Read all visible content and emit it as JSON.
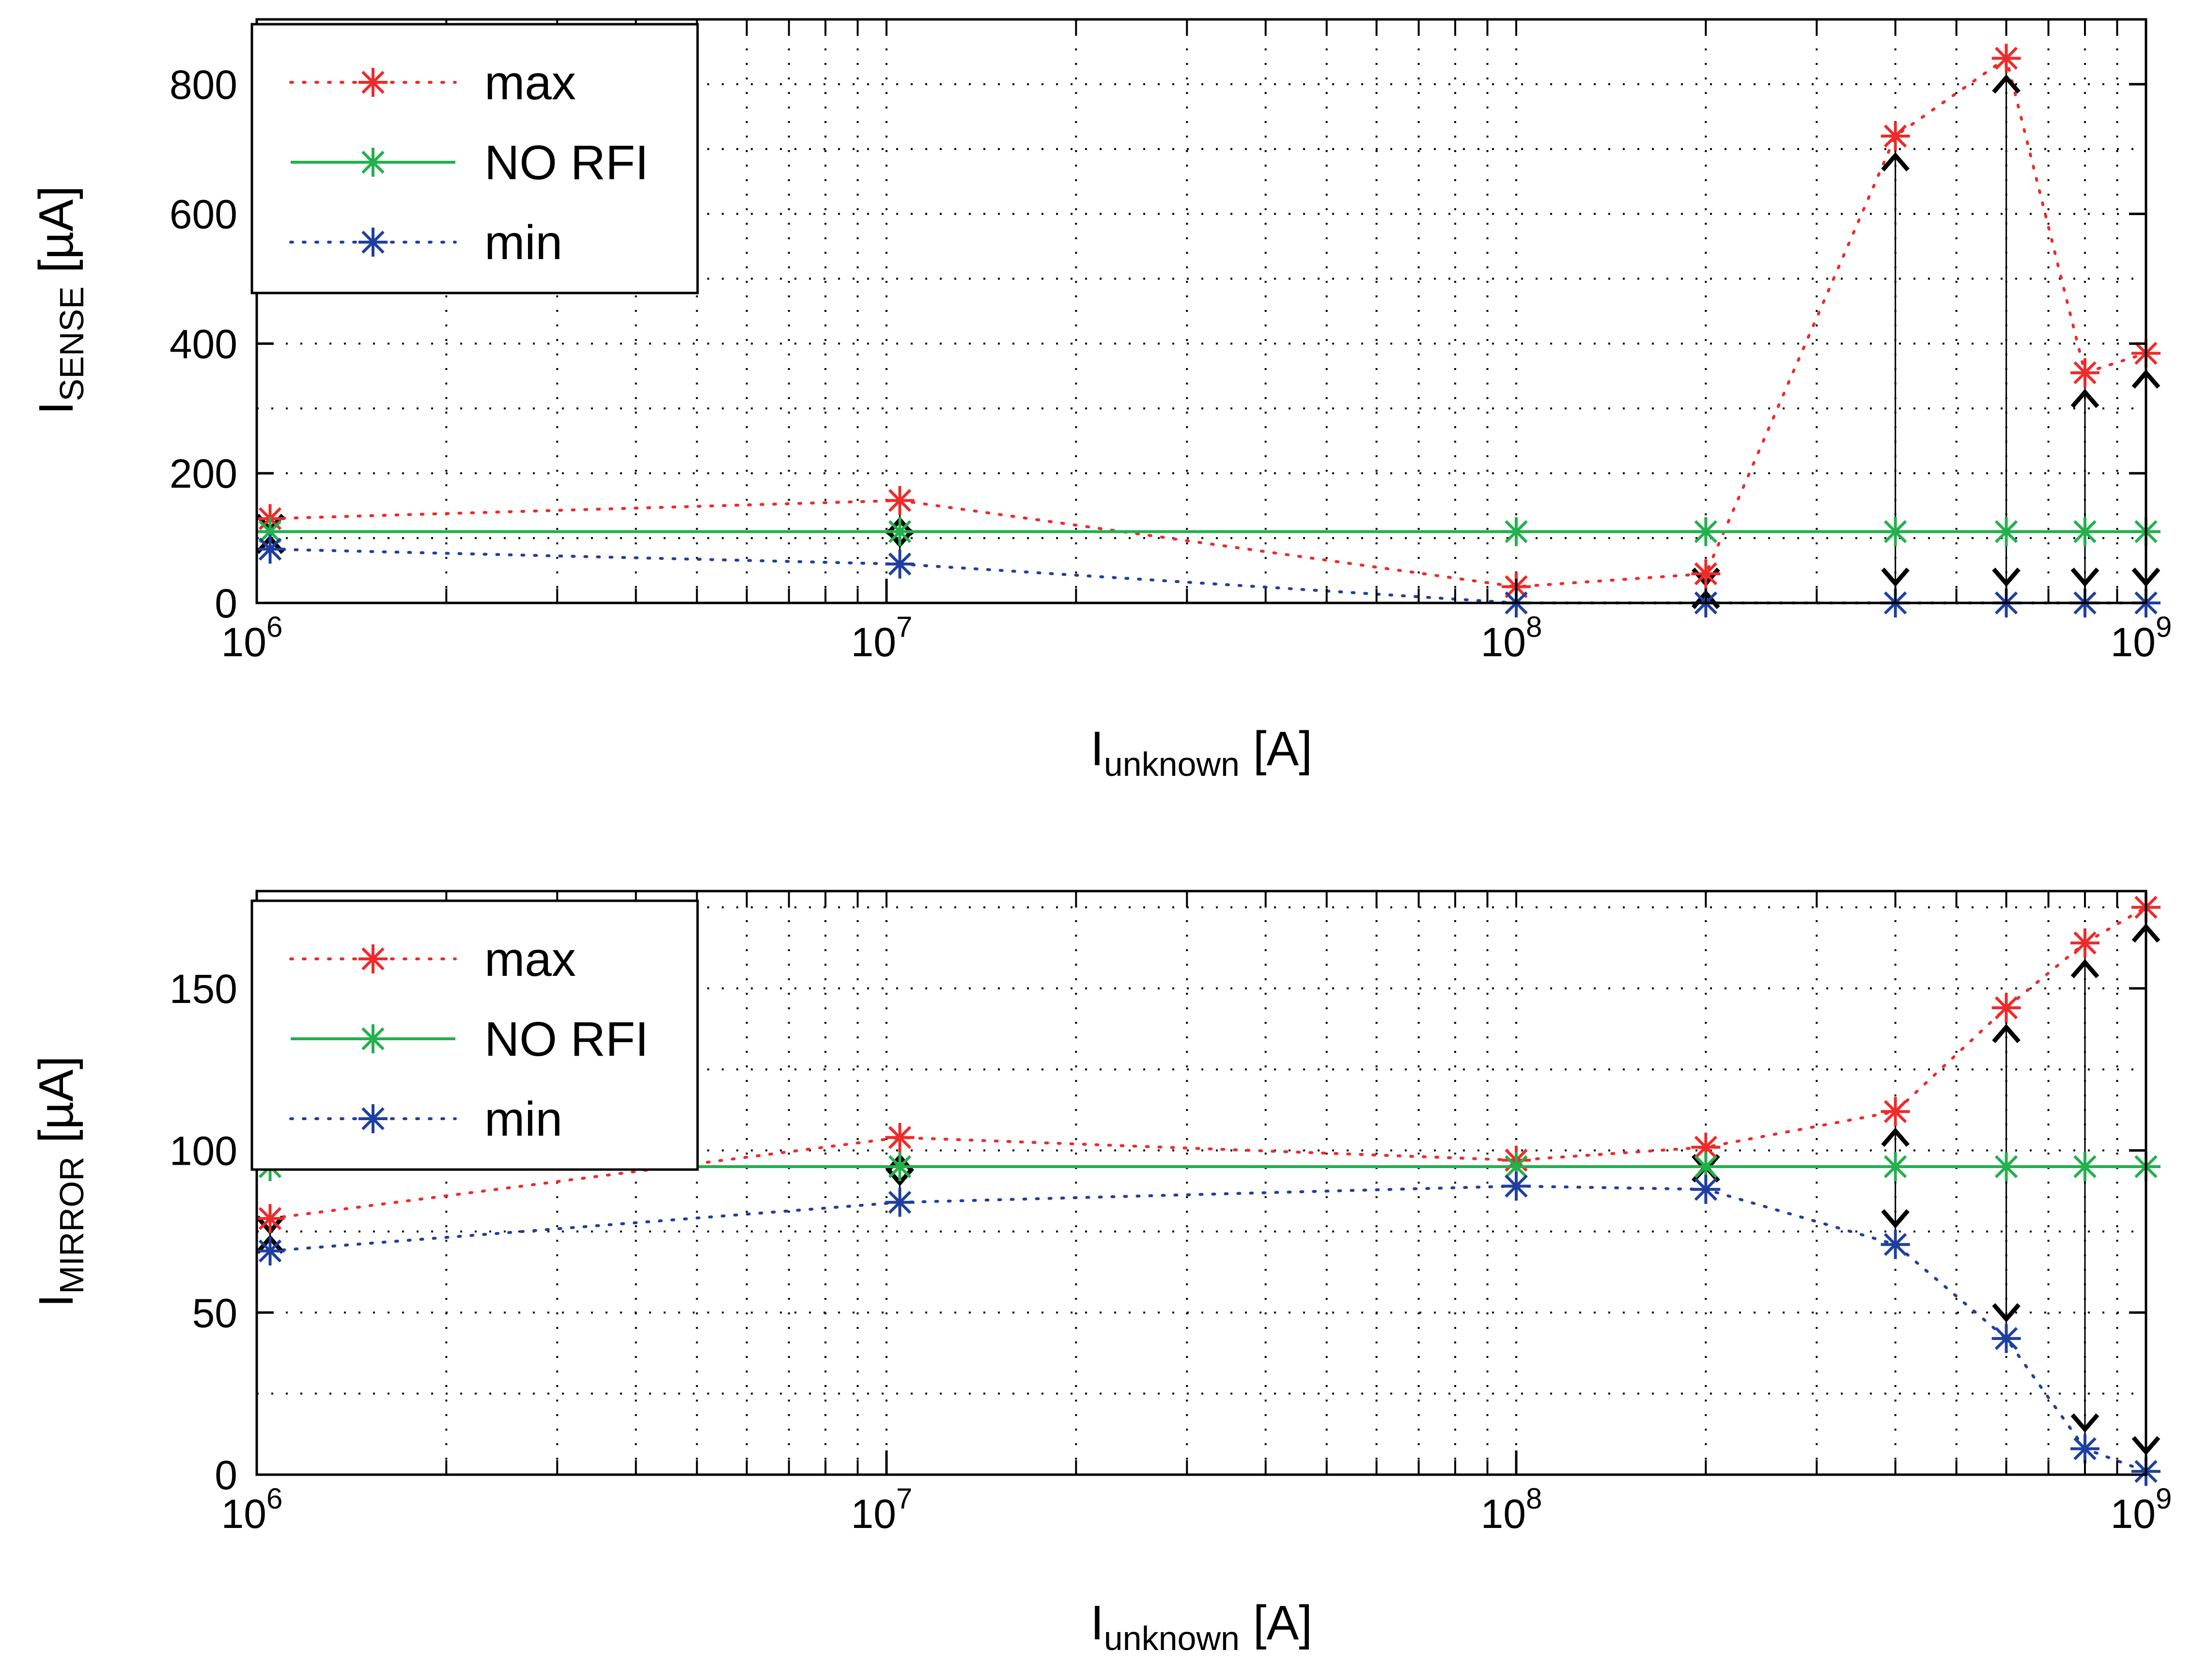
{
  "chart_data": [
    {
      "type": "line",
      "id": "sense",
      "xscale": "log",
      "xlim": [
        1000000,
        1000000000
      ],
      "ylim": [
        0,
        900
      ],
      "x": [
        1050000,
        10500000,
        100000000,
        200000000,
        400000000,
        600000000,
        800000000,
        1000000000
      ],
      "ylabel": {
        "main": "I",
        "sub": "SENSE",
        "unit": " [µA]"
      },
      "xlabel": {
        "main": "I",
        "sub": "unknown",
        "unit": " [A]"
      },
      "xticks": [
        {
          "value": 1000000,
          "base": "10",
          "exp": "6"
        },
        {
          "value": 10000000,
          "base": "10",
          "exp": "7"
        },
        {
          "value": 100000000,
          "base": "10",
          "exp": "8"
        },
        {
          "value": 1000000000,
          "base": "10",
          "exp": "9"
        }
      ],
      "yticks": [
        0,
        200,
        400,
        600,
        800
      ],
      "ygrid": [
        0,
        100,
        200,
        300,
        400,
        500,
        600,
        700,
        800,
        900
      ],
      "grid": true,
      "legend_position": "top-left",
      "series": [
        {
          "name": "max",
          "color": "#ee2a2a",
          "style": "dotted",
          "values": [
            130,
            158,
            25,
            45,
            720,
            840,
            355,
            385
          ]
        },
        {
          "name": "NO RFI",
          "color": "#22b14c",
          "style": "solid",
          "values": [
            110,
            110,
            110,
            110,
            110,
            110,
            110,
            110
          ]
        },
        {
          "name": "min",
          "color": "#1f3fa0",
          "style": "dotted",
          "values": [
            83,
            60,
            0,
            0,
            0,
            0,
            0,
            0
          ]
        }
      ]
    },
    {
      "type": "line",
      "id": "mirror",
      "xscale": "log",
      "xlim": [
        1000000,
        1000000000
      ],
      "ylim": [
        0,
        180
      ],
      "x": [
        1050000,
        10500000,
        100000000,
        200000000,
        400000000,
        600000000,
        800000000,
        1000000000
      ],
      "ylabel": {
        "main": "I",
        "sub": "MIRROR",
        "unit": " [µA]"
      },
      "xlabel": {
        "main": "I",
        "sub": "unknown",
        "unit": " [A]"
      },
      "xticks": [
        {
          "value": 1000000,
          "base": "10",
          "exp": "6"
        },
        {
          "value": 10000000,
          "base": "10",
          "exp": "7"
        },
        {
          "value": 100000000,
          "base": "10",
          "exp": "8"
        },
        {
          "value": 1000000000,
          "base": "10",
          "exp": "9"
        }
      ],
      "yticks": [
        0,
        50,
        100,
        150
      ],
      "ygrid": [
        0,
        25,
        50,
        75,
        100,
        125,
        150,
        175
      ],
      "grid": true,
      "legend_position": "top-left",
      "series": [
        {
          "name": "max",
          "color": "#ee2a2a",
          "style": "dotted",
          "values": [
            79,
            104,
            97,
            101,
            112,
            144,
            164,
            175
          ]
        },
        {
          "name": "NO RFI",
          "color": "#22b14c",
          "style": "solid",
          "values": [
            95,
            95,
            95,
            95,
            95,
            95,
            95,
            95
          ]
        },
        {
          "name": "min",
          "color": "#1f3fa0",
          "style": "dotted",
          "values": [
            69,
            84,
            89,
            88,
            71,
            42,
            8,
            1
          ]
        }
      ]
    }
  ]
}
